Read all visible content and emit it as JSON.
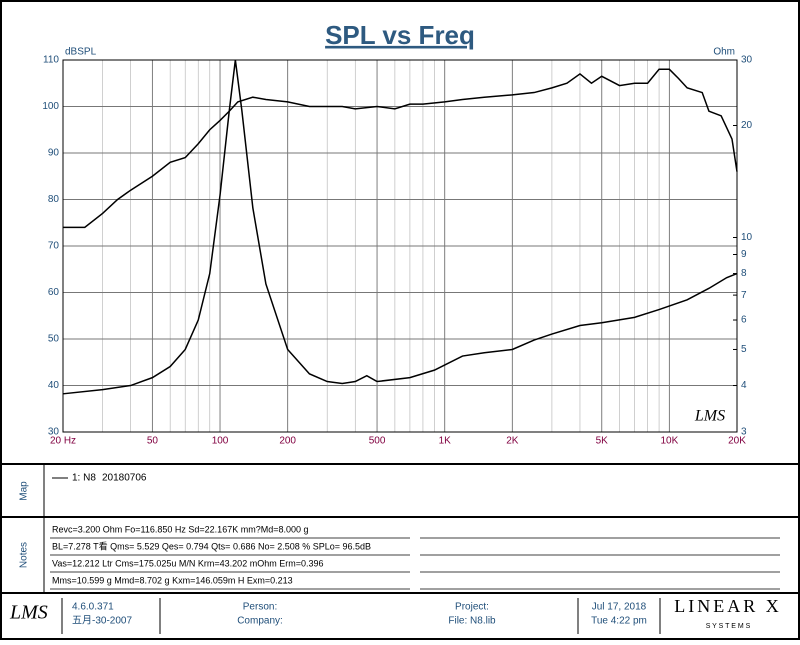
{
  "chart_data": {
    "type": "line",
    "title": "SPL vs Freq",
    "y_label": "dBSPL",
    "y2_label": "Ohm",
    "xscale": "log",
    "y2scale": "log",
    "grid": true,
    "xlim": [
      20,
      20000
    ],
    "ylim": [
      30,
      110
    ],
    "y2lim": [
      3,
      30
    ],
    "xticks": [
      {
        "value": 20,
        "label": "20  Hz"
      },
      50,
      100,
      200,
      500,
      {
        "value": 1000,
        "label": "1K"
      },
      {
        "value": 2000,
        "label": "2K"
      },
      {
        "value": 5000,
        "label": "5K"
      },
      {
        "value": 10000,
        "label": "10K"
      },
      {
        "value": 20000,
        "label": "20K"
      }
    ],
    "yticks": [
      30,
      40,
      50,
      60,
      70,
      80,
      90,
      100,
      110
    ],
    "y2ticks": [
      3,
      4,
      5,
      6,
      7,
      8,
      9,
      10,
      20,
      30
    ],
    "series": [
      {
        "color": "#000000",
        "x": [
          20,
          25,
          30,
          35,
          40,
          50,
          60,
          70,
          80,
          90,
          100,
          110,
          120,
          140,
          160,
          200,
          250,
          300,
          350,
          400,
          500,
          600,
          700,
          800,
          1000,
          1200,
          1500,
          2000,
          2500,
          3000,
          3500,
          4000,
          4500,
          5000,
          6000,
          7000,
          8000,
          9000,
          10000,
          11000,
          12000,
          14000,
          15000,
          17000,
          19000,
          20000
        ],
        "values": [
          74,
          74,
          77,
          80,
          82,
          85,
          88,
          89,
          92,
          95,
          97,
          99,
          101,
          102,
          101.5,
          101,
          100,
          100,
          100,
          99.5,
          100,
          99.5,
          100.5,
          100.5,
          101,
          101.5,
          102,
          102.5,
          103,
          104,
          105,
          107,
          105,
          106.5,
          104.5,
          105,
          105,
          108,
          108,
          106,
          104,
          103,
          99,
          98,
          93,
          86
        ]
      },
      {
        "color": "#000000",
        "axis": "y2",
        "x": [
          20,
          30,
          40,
          50,
          60,
          70,
          80,
          90,
          100,
          110,
          117,
          125,
          140,
          160,
          200,
          250,
          300,
          350,
          400,
          450,
          500,
          700,
          900,
          1200,
          1500,
          2000,
          2500,
          3000,
          4000,
          5000,
          7000,
          9000,
          12000,
          15000,
          18000,
          20000
        ],
        "values": [
          3.8,
          3.9,
          4.0,
          4.2,
          4.5,
          5.0,
          6.0,
          8.0,
          13,
          22,
          30,
          22,
          12,
          7.5,
          5.0,
          4.3,
          4.1,
          4.05,
          4.1,
          4.25,
          4.1,
          4.2,
          4.4,
          4.8,
          4.9,
          5.0,
          5.3,
          5.5,
          5.8,
          5.9,
          6.1,
          6.4,
          6.8,
          7.3,
          7.8,
          8.0
        ]
      }
    ],
    "logo": "LMS"
  },
  "map": {
    "label": "Map",
    "legend": "1: N8",
    "date": "20180706"
  },
  "notes": {
    "label": "Notes",
    "lines": [
      "Revc=3.200 Ohm  Fo=116.850 Hz  Sd=22.167K mm?Md=8.000 g",
      "BL=7.278 T看  Qms= 5.529  Qes= 0.794  Qts= 0.686  No= 2.508 %  SPLo= 96.5dB",
      "Vas=12.212 Ltr  Cms=175.025u M/N  Krm=43.202 mOhm  Erm=0.396",
      "Mms=10.599 g  Mmd=8.702 g  Kxm=146.059m H  Exm=0.213"
    ]
  },
  "footer": {
    "logo": "LMS",
    "version": "4.6.0.371",
    "build_date": "五月-30-2007",
    "person": "Person:",
    "company": "Company:",
    "project": "Project:",
    "file": "File: N8.lib",
    "date": "Jul 17, 2018",
    "time": "Tue  4:22 pm",
    "brand": "LINEAR X",
    "brand_sub": "S Y S T E M S"
  }
}
